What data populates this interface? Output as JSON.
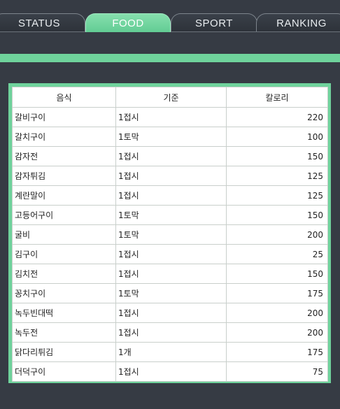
{
  "tabs": [
    {
      "label": "STATUS",
      "active": false
    },
    {
      "label": "FOOD",
      "active": true
    },
    {
      "label": "SPORT",
      "active": false
    },
    {
      "label": "RANKING",
      "active": false
    }
  ],
  "colors": {
    "accent": "#6fd39c",
    "background": "#363b44"
  },
  "table": {
    "headers": [
      "음식",
      "기준",
      "칼로리"
    ],
    "rows": [
      {
        "food": "갈비구이",
        "standard": "1접시",
        "calories": "220"
      },
      {
        "food": "갈치구이",
        "standard": "1토막",
        "calories": "100"
      },
      {
        "food": "감자전",
        "standard": "1접시",
        "calories": "150"
      },
      {
        "food": "감자튀김",
        "standard": "1접시",
        "calories": "125"
      },
      {
        "food": "계란말이",
        "standard": "1접시",
        "calories": "125"
      },
      {
        "food": "고등어구이",
        "standard": "1토막",
        "calories": "150"
      },
      {
        "food": "굴비",
        "standard": "1토막",
        "calories": "200"
      },
      {
        "food": "김구이",
        "standard": "1접시",
        "calories": "25"
      },
      {
        "food": "김치전",
        "standard": "1접시",
        "calories": "150"
      },
      {
        "food": "꽁치구이",
        "standard": "1토막",
        "calories": "175"
      },
      {
        "food": "녹두빈대떡",
        "standard": "1접시",
        "calories": "200"
      },
      {
        "food": "녹두전",
        "standard": "1접시",
        "calories": "200"
      },
      {
        "food": "닭다리튀김",
        "standard": "1개",
        "calories": "175"
      },
      {
        "food": "더덕구이",
        "standard": "1접시",
        "calories": "75"
      }
    ]
  }
}
